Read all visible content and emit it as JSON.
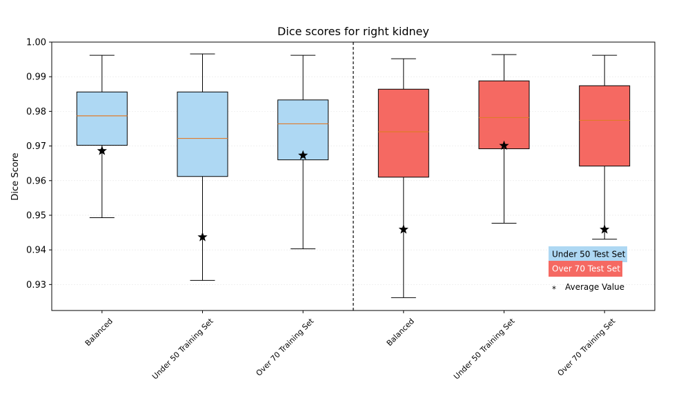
{
  "chart_data": {
    "type": "box",
    "title": "Dice scores for right kidney",
    "xlabel": "",
    "ylabel": "Dice Score",
    "ylim": [
      0.9225,
      1.0
    ],
    "yticks": [
      "0.93",
      "0.94",
      "0.95",
      "0.96",
      "0.97",
      "0.98",
      "0.99",
      "1.00"
    ],
    "ytick_values": [
      0.93,
      0.94,
      0.95,
      0.96,
      0.97,
      0.98,
      0.99,
      1.0
    ],
    "grid": "horizontal-faint",
    "categories": [
      "Balanced",
      "Under 50 Training Set",
      "Over 70 Training Set",
      "Balanced",
      "Under 50 Training Set",
      "Over 70 Training Set"
    ],
    "boxes": [
      {
        "group": "Under 50 Test Set",
        "label": "Balanced",
        "whisker_low": 0.9493,
        "q1": 0.9702,
        "median": 0.9787,
        "q3": 0.9856,
        "whisker_high": 0.9962,
        "mean": 0.9686
      },
      {
        "group": "Under 50 Test Set",
        "label": "Under 50 Training Set",
        "whisker_low": 0.9312,
        "q1": 0.9612,
        "median": 0.9722,
        "q3": 0.9856,
        "whisker_high": 0.9966,
        "mean": 0.9437
      },
      {
        "group": "Under 50 Test Set",
        "label": "Over 70 Training Set",
        "whisker_low": 0.9403,
        "q1": 0.966,
        "median": 0.9764,
        "q3": 0.9833,
        "whisker_high": 0.9962,
        "mean": 0.9673
      },
      {
        "group": "Over 70 Test Set",
        "label": "Balanced",
        "whisker_low": 0.9262,
        "q1": 0.961,
        "median": 0.9741,
        "q3": 0.9864,
        "whisker_high": 0.9952,
        "mean": 0.9459
      },
      {
        "group": "Over 70 Test Set",
        "label": "Under 50 Training Set",
        "whisker_low": 0.9477,
        "q1": 0.9692,
        "median": 0.9782,
        "q3": 0.9888,
        "whisker_high": 0.9964,
        "mean": 0.9701
      },
      {
        "group": "Over 70 Test Set",
        "label": "Over 70 Training Set",
        "whisker_low": 0.9431,
        "q1": 0.9642,
        "median": 0.9774,
        "q3": 0.9874,
        "whisker_high": 0.9962,
        "mean": 0.9459
      }
    ],
    "divider_after_index": 2,
    "legend": {
      "placement": "lower-right",
      "entries": [
        {
          "label": "Under 50 Test Set",
          "color": "#aed8f3"
        },
        {
          "label": "Over 70 Test Set",
          "color": "#f56962"
        },
        {
          "label": "Average Value",
          "marker": "*"
        }
      ]
    },
    "colors": {
      "under50": "#aed8f3",
      "over70": "#f56962",
      "median": "#e07b2a",
      "mean_marker": "#000000"
    }
  }
}
